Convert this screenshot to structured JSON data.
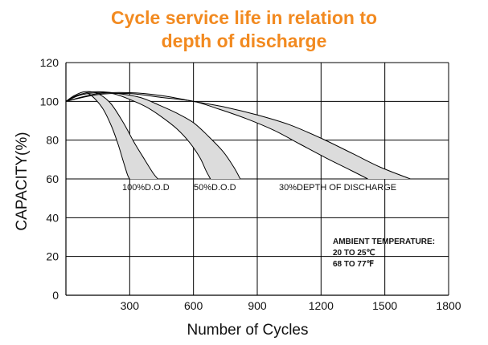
{
  "chart_data": {
    "type": "area",
    "title_lines": [
      "Cycle service life in relation to",
      "depth of discharge"
    ],
    "xlabel": "Number of Cycles",
    "ylabel": "CAPACITY(%)",
    "xlim": [
      0,
      1800
    ],
    "ylim": [
      0,
      120
    ],
    "x_ticks": [
      300,
      600,
      900,
      1200,
      1500,
      1800
    ],
    "y_ticks": [
      0,
      20,
      40,
      60,
      80,
      100,
      120
    ],
    "grid": true,
    "series": [
      {
        "name": "100%D.O.D",
        "upper": [
          [
            0,
            100
          ],
          [
            40,
            103
          ],
          [
            90,
            105
          ],
          [
            150,
            104
          ],
          [
            210,
            99
          ],
          [
            270,
            89
          ],
          [
            320,
            79
          ],
          [
            370,
            70
          ],
          [
            410,
            63
          ],
          [
            432,
            60
          ]
        ],
        "lower": [
          [
            0,
            100
          ],
          [
            50,
            103
          ],
          [
            100,
            104
          ],
          [
            130,
            102
          ],
          [
            175,
            96
          ],
          [
            215,
            87
          ],
          [
            245,
            78
          ],
          [
            270,
            69
          ],
          [
            290,
            62
          ],
          [
            300,
            60
          ]
        ]
      },
      {
        "name": "50%D.O.D",
        "upper": [
          [
            0,
            100
          ],
          [
            80,
            104
          ],
          [
            150,
            105
          ],
          [
            250,
            104
          ],
          [
            350,
            102
          ],
          [
            440,
            98
          ],
          [
            520,
            94
          ],
          [
            600,
            89
          ],
          [
            670,
            82
          ],
          [
            740,
            74
          ],
          [
            790,
            66
          ],
          [
            820,
            60
          ]
        ],
        "lower": [
          [
            0,
            100
          ],
          [
            60,
            103
          ],
          [
            140,
            104.5
          ],
          [
            220,
            104
          ],
          [
            300,
            101
          ],
          [
            380,
            97
          ],
          [
            450,
            92
          ],
          [
            520,
            86
          ],
          [
            580,
            79
          ],
          [
            630,
            71
          ],
          [
            660,
            64
          ],
          [
            680,
            60
          ]
        ]
      },
      {
        "name": "30%DEPTH OF DISCHARGE",
        "upper": [
          [
            0,
            100
          ],
          [
            150,
            104
          ],
          [
            300,
            104.5
          ],
          [
            450,
            103
          ],
          [
            600,
            100
          ],
          [
            750,
            97
          ],
          [
            900,
            93
          ],
          [
            1050,
            88
          ],
          [
            1200,
            81
          ],
          [
            1350,
            73
          ],
          [
            1480,
            66
          ],
          [
            1620,
            60
          ]
        ],
        "lower": [
          [
            0,
            100
          ],
          [
            150,
            103.5
          ],
          [
            300,
            104
          ],
          [
            450,
            102
          ],
          [
            600,
            100
          ],
          [
            720,
            96
          ],
          [
            850,
            91
          ],
          [
            980,
            85
          ],
          [
            1100,
            78
          ],
          [
            1220,
            71
          ],
          [
            1330,
            65
          ],
          [
            1420,
            60
          ]
        ]
      }
    ],
    "annotation_lines": [
      "AMBIENT TEMPERATURE:",
      "20 TO 25℃",
      "68 TO 77℉"
    ],
    "fill_color": "#dcdcdc",
    "line_color": "#000000",
    "title_color": "#f28a20"
  }
}
